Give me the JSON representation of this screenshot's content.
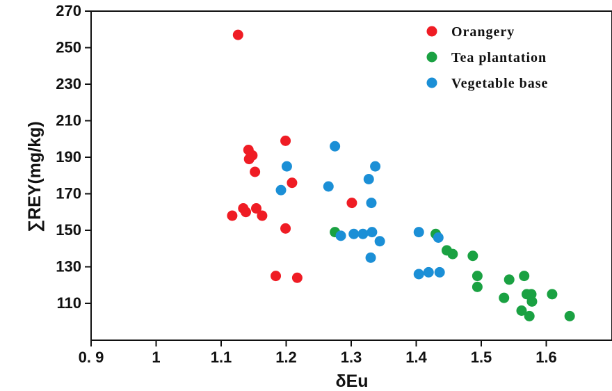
{
  "chart_data": {
    "type": "scatter",
    "xlabel": "δEu",
    "ylabel": "∑REY(mg/kg)",
    "xlim": [
      0.9,
      1.7
    ],
    "ylim": [
      90,
      270
    ],
    "x_ticks": [
      {
        "value": 0.9,
        "label": "0. 9"
      },
      {
        "value": 1.0,
        "label": "1"
      },
      {
        "value": 1.1,
        "label": "1.1"
      },
      {
        "value": 1.2,
        "label": "1.2"
      },
      {
        "value": 1.3,
        "label": "1.3"
      },
      {
        "value": 1.4,
        "label": "1.4"
      },
      {
        "value": 1.5,
        "label": "1.5"
      },
      {
        "value": 1.6,
        "label": "1.6"
      }
    ],
    "y_ticks": [
      {
        "value": 110,
        "label": "110"
      },
      {
        "value": 130,
        "label": "130"
      },
      {
        "value": 150,
        "label": "150"
      },
      {
        "value": 170,
        "label": "170"
      },
      {
        "value": 190,
        "label": "190"
      },
      {
        "value": 210,
        "label": "210"
      },
      {
        "value": 230,
        "label": "230"
      },
      {
        "value": 250,
        "label": "250"
      },
      {
        "value": 270,
        "label": "270"
      }
    ],
    "grid": false,
    "legend_position": "top-right",
    "series": [
      {
        "name": "Orangery",
        "color": "#ef1c24",
        "points": [
          [
            1.126,
            257
          ],
          [
            1.142,
            194
          ],
          [
            1.148,
            191
          ],
          [
            1.143,
            189
          ],
          [
            1.152,
            182
          ],
          [
            1.199,
            199
          ],
          [
            1.209,
            176
          ],
          [
            1.117,
            158
          ],
          [
            1.134,
            162
          ],
          [
            1.138,
            160
          ],
          [
            1.154,
            162
          ],
          [
            1.163,
            158
          ],
          [
            1.199,
            151
          ],
          [
            1.184,
            125
          ],
          [
            1.217,
            124
          ],
          [
            1.301,
            165
          ]
        ]
      },
      {
        "name": "Tea plantation",
        "color": "#1aa142",
        "points": [
          [
            1.275,
            149
          ],
          [
            1.43,
            148
          ],
          [
            1.447,
            139
          ],
          [
            1.456,
            137
          ],
          [
            1.487,
            136
          ],
          [
            1.494,
            125
          ],
          [
            1.494,
            119
          ],
          [
            1.535,
            113
          ],
          [
            1.543,
            123
          ],
          [
            1.566,
            125
          ],
          [
            1.57,
            115
          ],
          [
            1.577,
            115
          ],
          [
            1.578,
            111
          ],
          [
            1.562,
            106
          ],
          [
            1.574,
            103
          ],
          [
            1.609,
            115
          ],
          [
            1.636,
            103
          ]
        ]
      },
      {
        "name": "Vegetable base",
        "color": "#1b8fd6",
        "points": [
          [
            1.275,
            196
          ],
          [
            1.201,
            185
          ],
          [
            1.192,
            172
          ],
          [
            1.265,
            174
          ],
          [
            1.337,
            185
          ],
          [
            1.327,
            178
          ],
          [
            1.331,
            165
          ],
          [
            1.284,
            147
          ],
          [
            1.304,
            148
          ],
          [
            1.318,
            148
          ],
          [
            1.332,
            149
          ],
          [
            1.344,
            144
          ],
          [
            1.33,
            135
          ],
          [
            1.404,
            149
          ],
          [
            1.434,
            146
          ],
          [
            1.404,
            126
          ],
          [
            1.419,
            127
          ],
          [
            1.436,
            127
          ]
        ]
      }
    ]
  }
}
